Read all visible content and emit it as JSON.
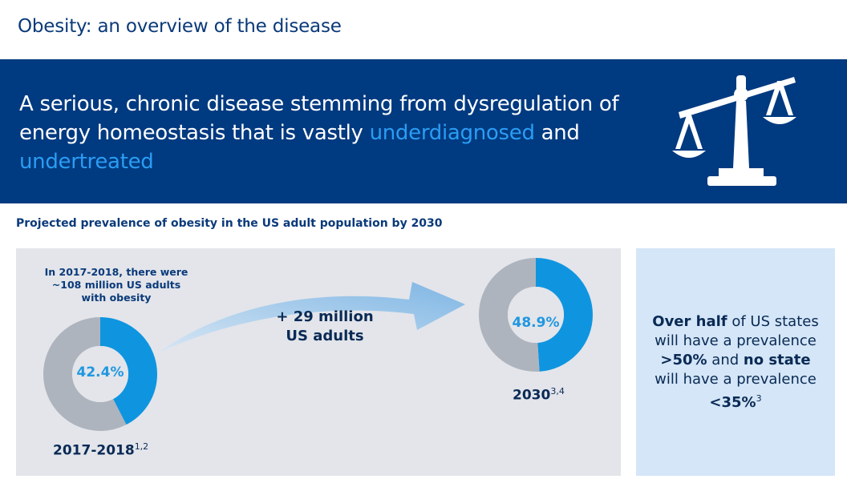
{
  "header": {
    "title": "Obesity: an overview of the disease"
  },
  "banner": {
    "text_part1": "A serious, chronic disease stemming from dysregulation of energy homeostasis that is vastly ",
    "highlight1": "underdiagnosed",
    "text_part2": " and ",
    "highlight2": "undertreated",
    "icon": "balance-scale-icon"
  },
  "section": {
    "title": "Projected prevalence of obesity in the US adult population by 2030"
  },
  "left_panel": {
    "note": "In 2017-2018, there were ~108 million US adults with obesity",
    "increase_line1": "+ 29 million",
    "increase_line2": "US adults"
  },
  "chart_data": [
    {
      "type": "pie",
      "values": [
        42.4,
        57.6
      ],
      "center_label": "42.4%",
      "year": "2017-2018",
      "footnote": "1,2"
    },
    {
      "type": "pie",
      "values": [
        48.9,
        51.1
      ],
      "center_label": "48.9%",
      "year": "2030",
      "footnote": "3,4"
    }
  ],
  "colors": {
    "navy": "#003a80",
    "highlight_blue": "#2a9df4",
    "donut_blue": "#0f95e0",
    "donut_gray": "#aeb4bd",
    "panel_gray": "#e3e5ea",
    "panel_blue": "#d4e6f7"
  },
  "right_panel": {
    "b1": "Over half",
    "t1": " of US states will have a prevalence ",
    "b2": ">50%",
    "t2": " and ",
    "b3": "no state",
    "t3": " will have a prevalence ",
    "b4": "<35%",
    "footnote": "3"
  }
}
